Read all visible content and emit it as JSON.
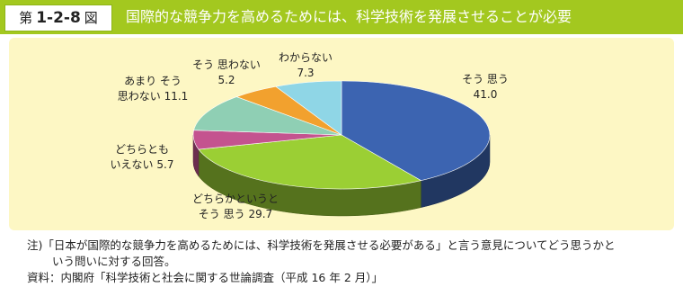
{
  "figure": {
    "prefix": "第",
    "number": "1-2-8",
    "suffix": "図"
  },
  "chart_data": {
    "type": "pie3d",
    "title": "国際的な競争力を高めるためには、科学技術を発展させることが必要",
    "categories": [
      "そう 思う",
      "どちらかというと\nそう 思う",
      "どちらとも\nいえない",
      "あまり そう\n思わない",
      "そう 思わない",
      "わからない"
    ],
    "values": [
      41.0,
      29.7,
      5.7,
      11.1,
      5.2,
      7.3
    ],
    "value_labels": [
      "41.0",
      "29.7",
      "5.7",
      "11.1",
      "5.2",
      "7.3"
    ],
    "colors": [
      "#3c64b1",
      "#9bcf34",
      "#c4538f",
      "#8fcfb4",
      "#f2a12e",
      "#8fd6e6"
    ]
  },
  "notes": [
    "注)「日本が国際的な競争力を高めるためには、科学技術を発展させる必要がある」と言う意見についてどう思うかと",
    "いう問いに対する回答。",
    "資料：内閣府「科学技術と社会に関する世論調査（平成 16 年 2 月）」"
  ]
}
